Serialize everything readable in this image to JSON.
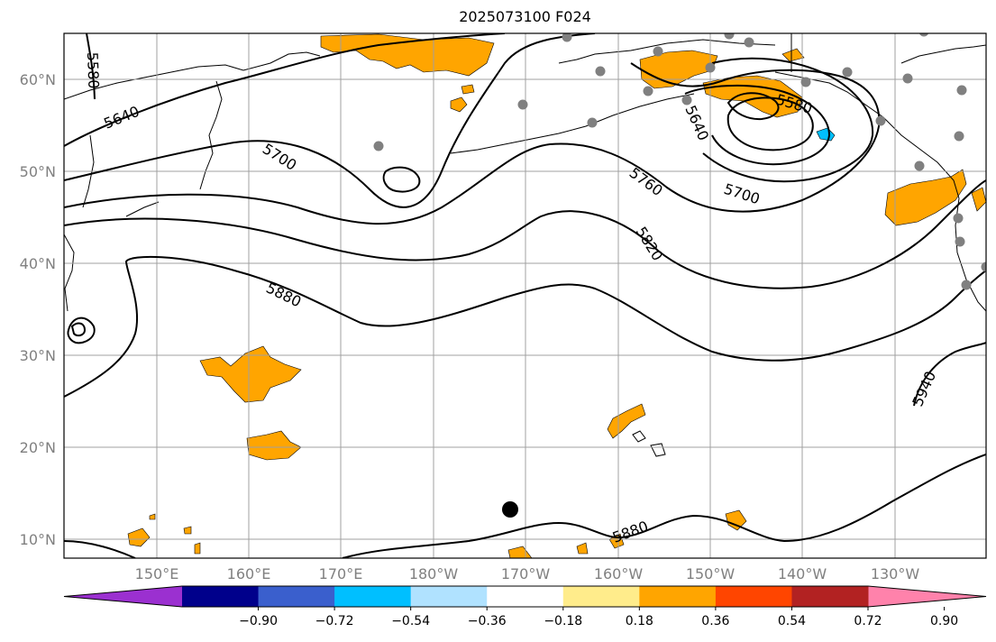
{
  "title": "2025073100 F024",
  "lat_ticks": [
    "10°N",
    "20°N",
    "30°N",
    "40°N",
    "50°N",
    "60°N"
  ],
  "lon_ticks": [
    "150°E",
    "160°E",
    "170°E",
    "180°W",
    "170°W",
    "160°W",
    "150°W",
    "140°W",
    "130°W"
  ],
  "contour_labels": [
    "5580",
    "5640",
    "5700",
    "5640",
    "5580",
    "5760",
    "5700",
    "5820",
    "5880",
    "5940",
    "5880"
  ],
  "colorbar": {
    "tick_labels": [
      "−0.90",
      "−0.72",
      "−0.54",
      "−0.36",
      "−0.18",
      "0.18",
      "0.36",
      "0.54",
      "0.72",
      "0.90"
    ],
    "colors": [
      "#9b30d0",
      "#00008b",
      "#3a5fcd",
      "#00bfff",
      "#b0e2ff",
      "#ffffff",
      "#ffec8b",
      "#ffa500",
      "#ff4500",
      "#b22222",
      "#ff82ab"
    ]
  },
  "colors": {
    "positive_anomaly": "#ffa500",
    "negative_anomaly": "#00bfff",
    "station_marker": "#808080",
    "grid": "#a0a0a0"
  }
}
